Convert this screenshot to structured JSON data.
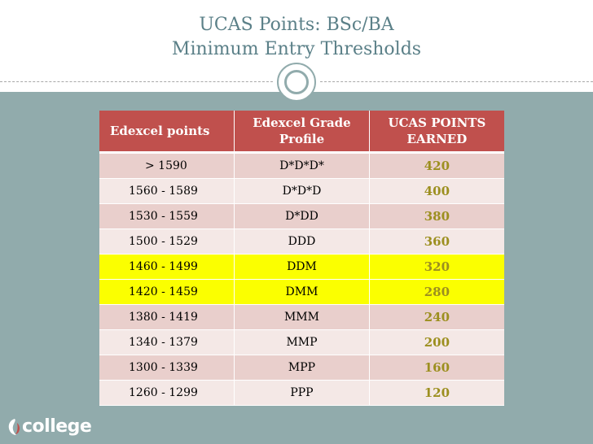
{
  "title": {
    "line1": "UCAS Points: BSc/BA",
    "line2": "Minimum Entry Thresholds"
  },
  "colors": {
    "title_text": "#5b8088",
    "header_bg": "#c0504d",
    "row_odd": "#e9cfcc",
    "row_even": "#f4e8e6",
    "row_highlight": "#fbff00",
    "points_text": "#9c8f1f",
    "content_bg": "#91abac"
  },
  "table": {
    "headers": [
      "Edexcel points",
      "Edexcel Grade Profile",
      "UCAS POINTS EARNED"
    ],
    "rows": [
      {
        "edexcel_points": "> 1590",
        "grade_profile": "D*D*D*",
        "ucas_points": "420",
        "style": "odd"
      },
      {
        "edexcel_points": "1560 - 1589",
        "grade_profile": "D*D*D",
        "ucas_points": "400",
        "style": "even"
      },
      {
        "edexcel_points": "1530 - 1559",
        "grade_profile": "D*DD",
        "ucas_points": "380",
        "style": "odd"
      },
      {
        "edexcel_points": "1500 - 1529",
        "grade_profile": "DDD",
        "ucas_points": "360",
        "style": "even"
      },
      {
        "edexcel_points": "1460 - 1499",
        "grade_profile": "DDM",
        "ucas_points": "320",
        "style": "highlight"
      },
      {
        "edexcel_points": "1420 - 1459",
        "grade_profile": "DMM",
        "ucas_points": "280",
        "style": "highlight"
      },
      {
        "edexcel_points": "1380 - 1419",
        "grade_profile": "MMM",
        "ucas_points": "240",
        "style": "odd"
      },
      {
        "edexcel_points": "1340 - 1379",
        "grade_profile": "MMP",
        "ucas_points": "200",
        "style": "even"
      },
      {
        "edexcel_points": "1300 - 1339",
        "grade_profile": "MPP",
        "ucas_points": "160",
        "style": "odd"
      },
      {
        "edexcel_points": "1260 - 1299",
        "grade_profile": "PPP",
        "ucas_points": "120",
        "style": "even"
      }
    ]
  },
  "logo": {
    "word": "college",
    "icon": "college-logo-mark-icon"
  }
}
